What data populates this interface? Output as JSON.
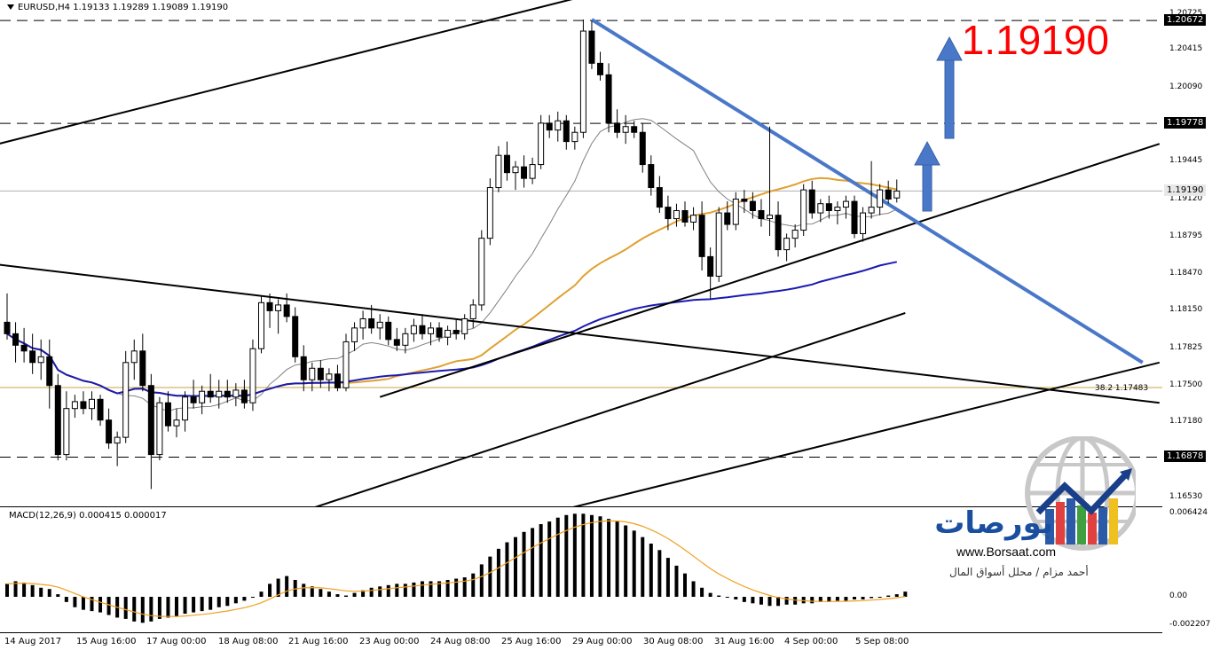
{
  "header": {
    "symbol_line": "EURUSD,H4  1.19133 1.19289 1.19089 1.19190"
  },
  "big_price": "1.19190",
  "fib_label": "38.2   1.17483",
  "macd_header": "MACD(12,26,9) 0.000415 0.000017",
  "price_axis": {
    "ticks": [
      "1.20725",
      "1.20415",
      "1.20090",
      "1.19445",
      "1.19120",
      "1.18795",
      "1.18470",
      "1.18150",
      "1.17825",
      "1.17500",
      "1.17180",
      "1.16530"
    ],
    "boxes": [
      {
        "label": "1.20672",
        "kind": "level"
      },
      {
        "label": "1.19778",
        "kind": "level"
      },
      {
        "label": "1.19190",
        "kind": "current"
      },
      {
        "label": "1.16878",
        "kind": "level"
      }
    ]
  },
  "macd_axis": {
    "ticks": [
      "0.006424",
      "0.00",
      "-0.002207"
    ]
  },
  "time_axis": {
    "labels": [
      "14 Aug 2017",
      "15 Aug 16:00",
      "17 Aug 00:00",
      "18 Aug 08:00",
      "21 Aug 16:00",
      "23 Aug 00:00",
      "24 Aug 08:00",
      "25 Aug 16:00",
      "29 Aug 00:00",
      "30 Aug 08:00",
      "31 Aug 16:00",
      "4 Sep 00:00",
      "5 Sep 08:00"
    ]
  },
  "logo": {
    "name": "بورصات",
    "url": "www.Borsaat.com",
    "author": "أحمد مزام / محلل أسواق المال"
  },
  "colors": {
    "bull_up": "#ffffff",
    "bear": "#000000",
    "ma_fast": "#808080",
    "ma_mid": "#e0a030",
    "ma_slow": "#1a1ab0",
    "trend_blue": "#4a78c8",
    "arrow": "#4a78c8",
    "price_red": "#ff0000"
  },
  "chart_data": {
    "type": "candlestick",
    "symbol": "EURUSD",
    "timeframe": "H4",
    "ylim": [
      1.1645,
      1.2085
    ],
    "levels": [
      1.20672,
      1.19778,
      1.16878
    ],
    "current_price": 1.1919,
    "fib_38_2": 1.17483,
    "candles": [
      {
        "o": 1.1805,
        "h": 1.183,
        "l": 1.179,
        "c": 1.1795
      },
      {
        "o": 1.1795,
        "h": 1.1805,
        "l": 1.177,
        "c": 1.1785
      },
      {
        "o": 1.1785,
        "h": 1.18,
        "l": 1.177,
        "c": 1.178
      },
      {
        "o": 1.178,
        "h": 1.1795,
        "l": 1.176,
        "c": 1.177
      },
      {
        "o": 1.177,
        "h": 1.179,
        "l": 1.1755,
        "c": 1.1775
      },
      {
        "o": 1.1775,
        "h": 1.179,
        "l": 1.173,
        "c": 1.175
      },
      {
        "o": 1.175,
        "h": 1.176,
        "l": 1.1685,
        "c": 1.169
      },
      {
        "o": 1.169,
        "h": 1.1745,
        "l": 1.1685,
        "c": 1.173
      },
      {
        "o": 1.173,
        "h": 1.1742,
        "l": 1.1722,
        "c": 1.1736
      },
      {
        "o": 1.1736,
        "h": 1.1745,
        "l": 1.1725,
        "c": 1.173
      },
      {
        "o": 1.173,
        "h": 1.1745,
        "l": 1.172,
        "c": 1.1738
      },
      {
        "o": 1.1738,
        "h": 1.1742,
        "l": 1.1715,
        "c": 1.172
      },
      {
        "o": 1.172,
        "h": 1.173,
        "l": 1.1695,
        "c": 1.17
      },
      {
        "o": 1.17,
        "h": 1.171,
        "l": 1.168,
        "c": 1.1705
      },
      {
        "o": 1.1705,
        "h": 1.178,
        "l": 1.17,
        "c": 1.177
      },
      {
        "o": 1.177,
        "h": 1.179,
        "l": 1.1755,
        "c": 1.178
      },
      {
        "o": 1.178,
        "h": 1.1795,
        "l": 1.1745,
        "c": 1.175
      },
      {
        "o": 1.175,
        "h": 1.176,
        "l": 1.166,
        "c": 1.169
      },
      {
        "o": 1.169,
        "h": 1.174,
        "l": 1.1685,
        "c": 1.1735
      },
      {
        "o": 1.1735,
        "h": 1.1745,
        "l": 1.171,
        "c": 1.1715
      },
      {
        "o": 1.1715,
        "h": 1.173,
        "l": 1.1705,
        "c": 1.172
      },
      {
        "o": 1.172,
        "h": 1.1745,
        "l": 1.171,
        "c": 1.174
      },
      {
        "o": 1.174,
        "h": 1.1755,
        "l": 1.173,
        "c": 1.1735
      },
      {
        "o": 1.1735,
        "h": 1.175,
        "l": 1.1725,
        "c": 1.1745
      },
      {
        "o": 1.1745,
        "h": 1.176,
        "l": 1.1735,
        "c": 1.174
      },
      {
        "o": 1.174,
        "h": 1.1755,
        "l": 1.173,
        "c": 1.1745
      },
      {
        "o": 1.1745,
        "h": 1.1755,
        "l": 1.1735,
        "c": 1.174
      },
      {
        "o": 1.174,
        "h": 1.1752,
        "l": 1.1732,
        "c": 1.1746
      },
      {
        "o": 1.1746,
        "h": 1.1755,
        "l": 1.173,
        "c": 1.1735
      },
      {
        "o": 1.1735,
        "h": 1.179,
        "l": 1.1728,
        "c": 1.1782
      },
      {
        "o": 1.1782,
        "h": 1.1828,
        "l": 1.1778,
        "c": 1.1822
      },
      {
        "o": 1.1822,
        "h": 1.183,
        "l": 1.18,
        "c": 1.1815
      },
      {
        "o": 1.1815,
        "h": 1.1825,
        "l": 1.1795,
        "c": 1.182
      },
      {
        "o": 1.182,
        "h": 1.183,
        "l": 1.1805,
        "c": 1.181
      },
      {
        "o": 1.181,
        "h": 1.1818,
        "l": 1.177,
        "c": 1.1775
      },
      {
        "o": 1.1775,
        "h": 1.1785,
        "l": 1.1745,
        "c": 1.1755
      },
      {
        "o": 1.1755,
        "h": 1.177,
        "l": 1.1745,
        "c": 1.1765
      },
      {
        "o": 1.1765,
        "h": 1.1772,
        "l": 1.1748,
        "c": 1.1755
      },
      {
        "o": 1.1755,
        "h": 1.1765,
        "l": 1.1745,
        "c": 1.176
      },
      {
        "o": 1.176,
        "h": 1.1768,
        "l": 1.1745,
        "c": 1.1748
      },
      {
        "o": 1.1748,
        "h": 1.1795,
        "l": 1.1745,
        "c": 1.1788
      },
      {
        "o": 1.1788,
        "h": 1.1805,
        "l": 1.178,
        "c": 1.18
      },
      {
        "o": 1.18,
        "h": 1.1815,
        "l": 1.179,
        "c": 1.1808
      },
      {
        "o": 1.1808,
        "h": 1.182,
        "l": 1.1795,
        "c": 1.18
      },
      {
        "o": 1.18,
        "h": 1.1812,
        "l": 1.179,
        "c": 1.1805
      },
      {
        "o": 1.1805,
        "h": 1.181,
        "l": 1.1785,
        "c": 1.179
      },
      {
        "o": 1.179,
        "h": 1.18,
        "l": 1.178,
        "c": 1.1785
      },
      {
        "o": 1.1785,
        "h": 1.18,
        "l": 1.1778,
        "c": 1.1795
      },
      {
        "o": 1.1795,
        "h": 1.1808,
        "l": 1.1788,
        "c": 1.1802
      },
      {
        "o": 1.1802,
        "h": 1.1812,
        "l": 1.179,
        "c": 1.1795
      },
      {
        "o": 1.1795,
        "h": 1.1805,
        "l": 1.1785,
        "c": 1.18
      },
      {
        "o": 1.18,
        "h": 1.1805,
        "l": 1.1788,
        "c": 1.1792
      },
      {
        "o": 1.1792,
        "h": 1.1802,
        "l": 1.1785,
        "c": 1.1798
      },
      {
        "o": 1.1798,
        "h": 1.1808,
        "l": 1.179,
        "c": 1.1795
      },
      {
        "o": 1.1795,
        "h": 1.1812,
        "l": 1.179,
        "c": 1.1808
      },
      {
        "o": 1.1808,
        "h": 1.1825,
        "l": 1.18,
        "c": 1.182
      },
      {
        "o": 1.182,
        "h": 1.1885,
        "l": 1.1815,
        "c": 1.1878
      },
      {
        "o": 1.1878,
        "h": 1.193,
        "l": 1.1872,
        "c": 1.1922
      },
      {
        "o": 1.1922,
        "h": 1.1958,
        "l": 1.1918,
        "c": 1.195
      },
      {
        "o": 1.195,
        "h": 1.1962,
        "l": 1.1928,
        "c": 1.1935
      },
      {
        "o": 1.1935,
        "h": 1.1945,
        "l": 1.192,
        "c": 1.194
      },
      {
        "o": 1.194,
        "h": 1.195,
        "l": 1.1922,
        "c": 1.193
      },
      {
        "o": 1.193,
        "h": 1.1948,
        "l": 1.1925,
        "c": 1.1942
      },
      {
        "o": 1.1942,
        "h": 1.1985,
        "l": 1.1938,
        "c": 1.1978
      },
      {
        "o": 1.1978,
        "h": 1.1985,
        "l": 1.1965,
        "c": 1.1972
      },
      {
        "o": 1.1972,
        "h": 1.1988,
        "l": 1.1962,
        "c": 1.198
      },
      {
        "o": 1.198,
        "h": 1.1985,
        "l": 1.1955,
        "c": 1.1962
      },
      {
        "o": 1.1962,
        "h": 1.1975,
        "l": 1.1955,
        "c": 1.197
      },
      {
        "o": 1.197,
        "h": 1.2068,
        "l": 1.1965,
        "c": 1.2058
      },
      {
        "o": 1.2058,
        "h": 1.2067,
        "l": 1.2025,
        "c": 1.203
      },
      {
        "o": 1.203,
        "h": 1.204,
        "l": 1.2015,
        "c": 1.202
      },
      {
        "o": 1.202,
        "h": 1.203,
        "l": 1.197,
        "c": 1.1978
      },
      {
        "o": 1.1978,
        "h": 1.199,
        "l": 1.1965,
        "c": 1.197
      },
      {
        "o": 1.197,
        "h": 1.1985,
        "l": 1.196,
        "c": 1.1975
      },
      {
        "o": 1.1975,
        "h": 1.198,
        "l": 1.1965,
        "c": 1.197
      },
      {
        "o": 1.197,
        "h": 1.1978,
        "l": 1.1935,
        "c": 1.1942
      },
      {
        "o": 1.1942,
        "h": 1.195,
        "l": 1.1915,
        "c": 1.1922
      },
      {
        "o": 1.1922,
        "h": 1.1932,
        "l": 1.19,
        "c": 1.1905
      },
      {
        "o": 1.1905,
        "h": 1.1915,
        "l": 1.1885,
        "c": 1.1895
      },
      {
        "o": 1.1895,
        "h": 1.1908,
        "l": 1.1888,
        "c": 1.1902
      },
      {
        "o": 1.1902,
        "h": 1.191,
        "l": 1.1888,
        "c": 1.1892
      },
      {
        "o": 1.1892,
        "h": 1.1905,
        "l": 1.1885,
        "c": 1.1898
      },
      {
        "o": 1.1898,
        "h": 1.191,
        "l": 1.185,
        "c": 1.1862
      },
      {
        "o": 1.1862,
        "h": 1.187,
        "l": 1.1825,
        "c": 1.1845
      },
      {
        "o": 1.1845,
        "h": 1.1905,
        "l": 1.184,
        "c": 1.19
      },
      {
        "o": 1.19,
        "h": 1.191,
        "l": 1.1885,
        "c": 1.189
      },
      {
        "o": 1.189,
        "h": 1.1918,
        "l": 1.1885,
        "c": 1.1912
      },
      {
        "o": 1.1912,
        "h": 1.192,
        "l": 1.19,
        "c": 1.191
      },
      {
        "o": 1.191,
        "h": 1.1918,
        "l": 1.1895,
        "c": 1.1902
      },
      {
        "o": 1.1902,
        "h": 1.1912,
        "l": 1.1888,
        "c": 1.1895
      },
      {
        "o": 1.1895,
        "h": 1.1975,
        "l": 1.188,
        "c": 1.1898
      },
      {
        "o": 1.1898,
        "h": 1.191,
        "l": 1.1862,
        "c": 1.1868
      },
      {
        "o": 1.1868,
        "h": 1.1882,
        "l": 1.1858,
        "c": 1.1878
      },
      {
        "o": 1.1878,
        "h": 1.189,
        "l": 1.187,
        "c": 1.1885
      },
      {
        "o": 1.1885,
        "h": 1.1925,
        "l": 1.188,
        "c": 1.192
      },
      {
        "o": 1.192,
        "h": 1.1928,
        "l": 1.1895,
        "c": 1.19
      },
      {
        "o": 1.19,
        "h": 1.1912,
        "l": 1.1892,
        "c": 1.1908
      },
      {
        "o": 1.1908,
        "h": 1.1915,
        "l": 1.1895,
        "c": 1.1902
      },
      {
        "o": 1.1902,
        "h": 1.191,
        "l": 1.189,
        "c": 1.1905
      },
      {
        "o": 1.1905,
        "h": 1.1915,
        "l": 1.1895,
        "c": 1.191
      },
      {
        "o": 1.191,
        "h": 1.1915,
        "l": 1.1878,
        "c": 1.1882
      },
      {
        "o": 1.1882,
        "h": 1.1905,
        "l": 1.1875,
        "c": 1.19
      },
      {
        "o": 1.19,
        "h": 1.1945,
        "l": 1.1895,
        "c": 1.1905
      },
      {
        "o": 1.1905,
        "h": 1.1925,
        "l": 1.1898,
        "c": 1.192
      },
      {
        "o": 1.192,
        "h": 1.1928,
        "l": 1.1908,
        "c": 1.1912
      },
      {
        "o": 1.1913,
        "h": 1.1929,
        "l": 1.1909,
        "c": 1.1919
      }
    ],
    "macd_ylim": [
      -0.0028,
      0.0069
    ],
    "macd_hist": [
      0.001,
      0.0012,
      0.0011,
      0.0009,
      0.0007,
      0.0006,
      0.0002,
      -0.0004,
      -0.0008,
      -0.001,
      -0.0011,
      -0.0012,
      -0.0014,
      -0.0016,
      -0.0017,
      -0.0019,
      -0.002,
      -0.0019,
      -0.0017,
      -0.0016,
      -0.0015,
      -0.0013,
      -0.0012,
      -0.0011,
      -0.001,
      -0.0008,
      -0.0007,
      -0.0005,
      -0.0003,
      0.0,
      0.0004,
      0.001,
      0.0014,
      0.0016,
      0.0013,
      0.001,
      0.0008,
      0.0006,
      0.0004,
      0.0002,
      0.0001,
      0.0003,
      0.0005,
      0.0007,
      0.0008,
      0.0009,
      0.001,
      0.001,
      0.0011,
      0.0012,
      0.0012,
      0.0012,
      0.0013,
      0.0014,
      0.0015,
      0.0018,
      0.0025,
      0.0031,
      0.0037,
      0.0042,
      0.0046,
      0.005,
      0.0053,
      0.0056,
      0.0058,
      0.0061,
      0.0063,
      0.0064,
      0.0064,
      0.0063,
      0.0062,
      0.006,
      0.0058,
      0.0055,
      0.0051,
      0.0046,
      0.0041,
      0.0036,
      0.003,
      0.0024,
      0.0018,
      0.0012,
      0.0007,
      0.0003,
      0.0001,
      0.0,
      -0.0002,
      -0.0004,
      -0.0005,
      -0.0006,
      -0.0007,
      -0.0007,
      -0.0006,
      -0.0006,
      -0.0005,
      -0.0005,
      -0.0004,
      -0.0004,
      -0.0003,
      -0.0003,
      -0.0002,
      -0.0002,
      -0.0001,
      0.0,
      0.0001,
      0.0002,
      0.0004
    ]
  }
}
